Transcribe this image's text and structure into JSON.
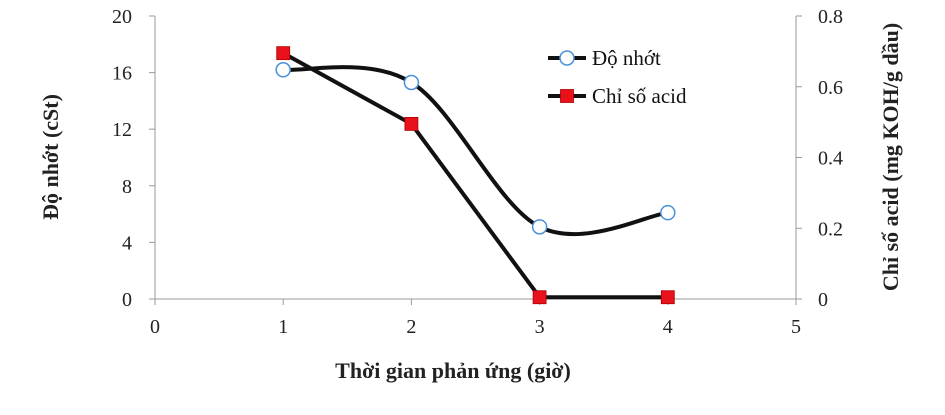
{
  "chart_data": {
    "type": "line",
    "x": [
      1,
      2,
      3,
      4
    ],
    "xlabel": "Thời gian phản ứng (giờ)",
    "xlim": [
      0,
      5
    ],
    "xticks": [
      "0",
      "1",
      "2",
      "3",
      "4",
      "5"
    ],
    "ylabel": "Độ nhớt (cSt)",
    "ylim": [
      0,
      20
    ],
    "yticks": [
      "0",
      "4",
      "8",
      "12",
      "16",
      "20"
    ],
    "y2label": "Chỉ số acid (mg KOH/g dầu)",
    "y2lim": [
      0,
      0.8
    ],
    "y2ticks": [
      "0",
      "0.2",
      "0.4",
      "0.6",
      "0.8"
    ],
    "grid": false,
    "legend_position": "top-right",
    "series": [
      {
        "name": "Độ nhớt",
        "axis": "left",
        "values": [
          16.2,
          15.3,
          5.1,
          6.1
        ],
        "marker": "circle",
        "marker_color": "#4a90d9",
        "line_color": "#111111",
        "smooth": true
      },
      {
        "name": "Chỉ số acid",
        "axis": "right",
        "values": [
          0.695,
          0.495,
          0.005,
          0.005
        ],
        "marker": "square",
        "marker_color": "#e8111c",
        "line_color": "#111111",
        "smooth": false
      }
    ]
  }
}
